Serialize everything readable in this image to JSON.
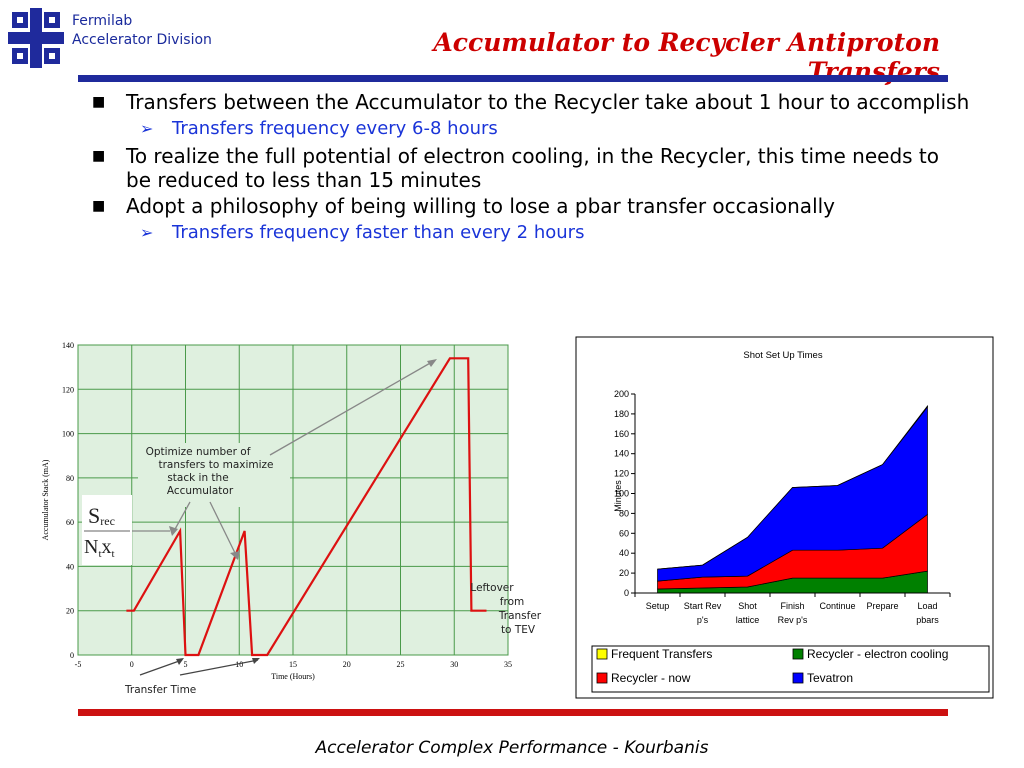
{
  "header": {
    "org_line1": "Fermilab",
    "org_line2": "Accelerator Division",
    "title": "Accumulator to Recycler Antiproton Transfers"
  },
  "bullets": [
    {
      "level": 1,
      "text": "Transfers between the Accumulator to the Recycler take about 1 hour to accomplish"
    },
    {
      "level": 2,
      "text": "Transfers frequency every 6-8 hours"
    },
    {
      "level": 1,
      "text": "To realize the full potential of electron cooling, in the Recycler, this time needs to be reduced to less than 15 minutes"
    },
    {
      "level": 1,
      "text": "Adopt a philosophy of being willing to lose a pbar transfer occasionally"
    },
    {
      "level": 2,
      "text": "Transfers frequency faster than every 2 hours"
    }
  ],
  "colors": {
    "title": "#cc0000",
    "header_blue": "#1f2a9c",
    "bullet2": "#1a34d8",
    "bottom_rule": "#cc1111"
  },
  "chart_data": [
    {
      "type": "line",
      "title": "",
      "xlabel": "Time (Hours)",
      "ylabel": "Accumulator Stack (mA)",
      "xlim": [
        -5,
        35
      ],
      "ylim": [
        0,
        140
      ],
      "x_ticks": [
        -5,
        0,
        5,
        10,
        15,
        20,
        25,
        30,
        35
      ],
      "y_ticks": [
        0,
        20,
        40,
        60,
        80,
        100,
        120,
        140
      ],
      "grid": true,
      "series": [
        {
          "x": [
            -0.5,
            0.2,
            4.5,
            5,
            5.4,
            6.2,
            10.5,
            11.2,
            11.6,
            12.6,
            29.6,
            30.1,
            31.3,
            31.6,
            33
          ],
          "y": [
            20,
            20,
            56,
            0,
            0,
            0,
            56,
            0,
            0,
            0,
            134,
            134,
            134,
            20,
            20
          ]
        }
      ],
      "annotations": {
        "optimize": [
          "Optimize number of",
          "transfers to maximize",
          "stack in the",
          "Accumulator"
        ],
        "s_main": "S",
        "s_sub": "rec",
        "n_main": "N",
        "n_sub": "t",
        "x_main": "x",
        "x_sub": "t",
        "transfer_time": "Transfer Time",
        "leftover": [
          "Leftover",
          "from",
          "Transfer",
          "to TEV"
        ]
      }
    },
    {
      "type": "area",
      "title": "Shot Set Up Times",
      "ylabel": "Minutes",
      "ylim": [
        0,
        200
      ],
      "y_ticks": [
        0,
        20,
        40,
        60,
        80,
        100,
        120,
        140,
        160,
        180,
        200
      ],
      "categories": [
        [
          "Setup"
        ],
        [
          "Start Rev",
          "p's"
        ],
        [
          "Shot",
          "lattice"
        ],
        [
          "Finish",
          "Rev p's"
        ],
        [
          "Continue"
        ],
        [
          "Prepare"
        ],
        [
          "Load",
          "pbars"
        ]
      ],
      "series": [
        {
          "name": "Frequent Transfers",
          "color": "#ffff00",
          "values": [
            0,
            0,
            0,
            0,
            0,
            0,
            1
          ]
        },
        {
          "name": "Recycler - electron cooling",
          "color": "#008000",
          "values": [
            4,
            5,
            6,
            15,
            15,
            15,
            22
          ]
        },
        {
          "name": "Recycler - now",
          "color": "#ff0000",
          "values": [
            8,
            11,
            11,
            28,
            28,
            30,
            57
          ]
        },
        {
          "name": "Tevatron",
          "color": "#0000ff",
          "values": [
            12,
            12,
            39,
            63,
            65,
            84,
            108
          ]
        }
      ],
      "legend_position": "bottom"
    }
  ],
  "footer": {
    "text": "Accelerator Complex Performance - Kourbanis"
  }
}
